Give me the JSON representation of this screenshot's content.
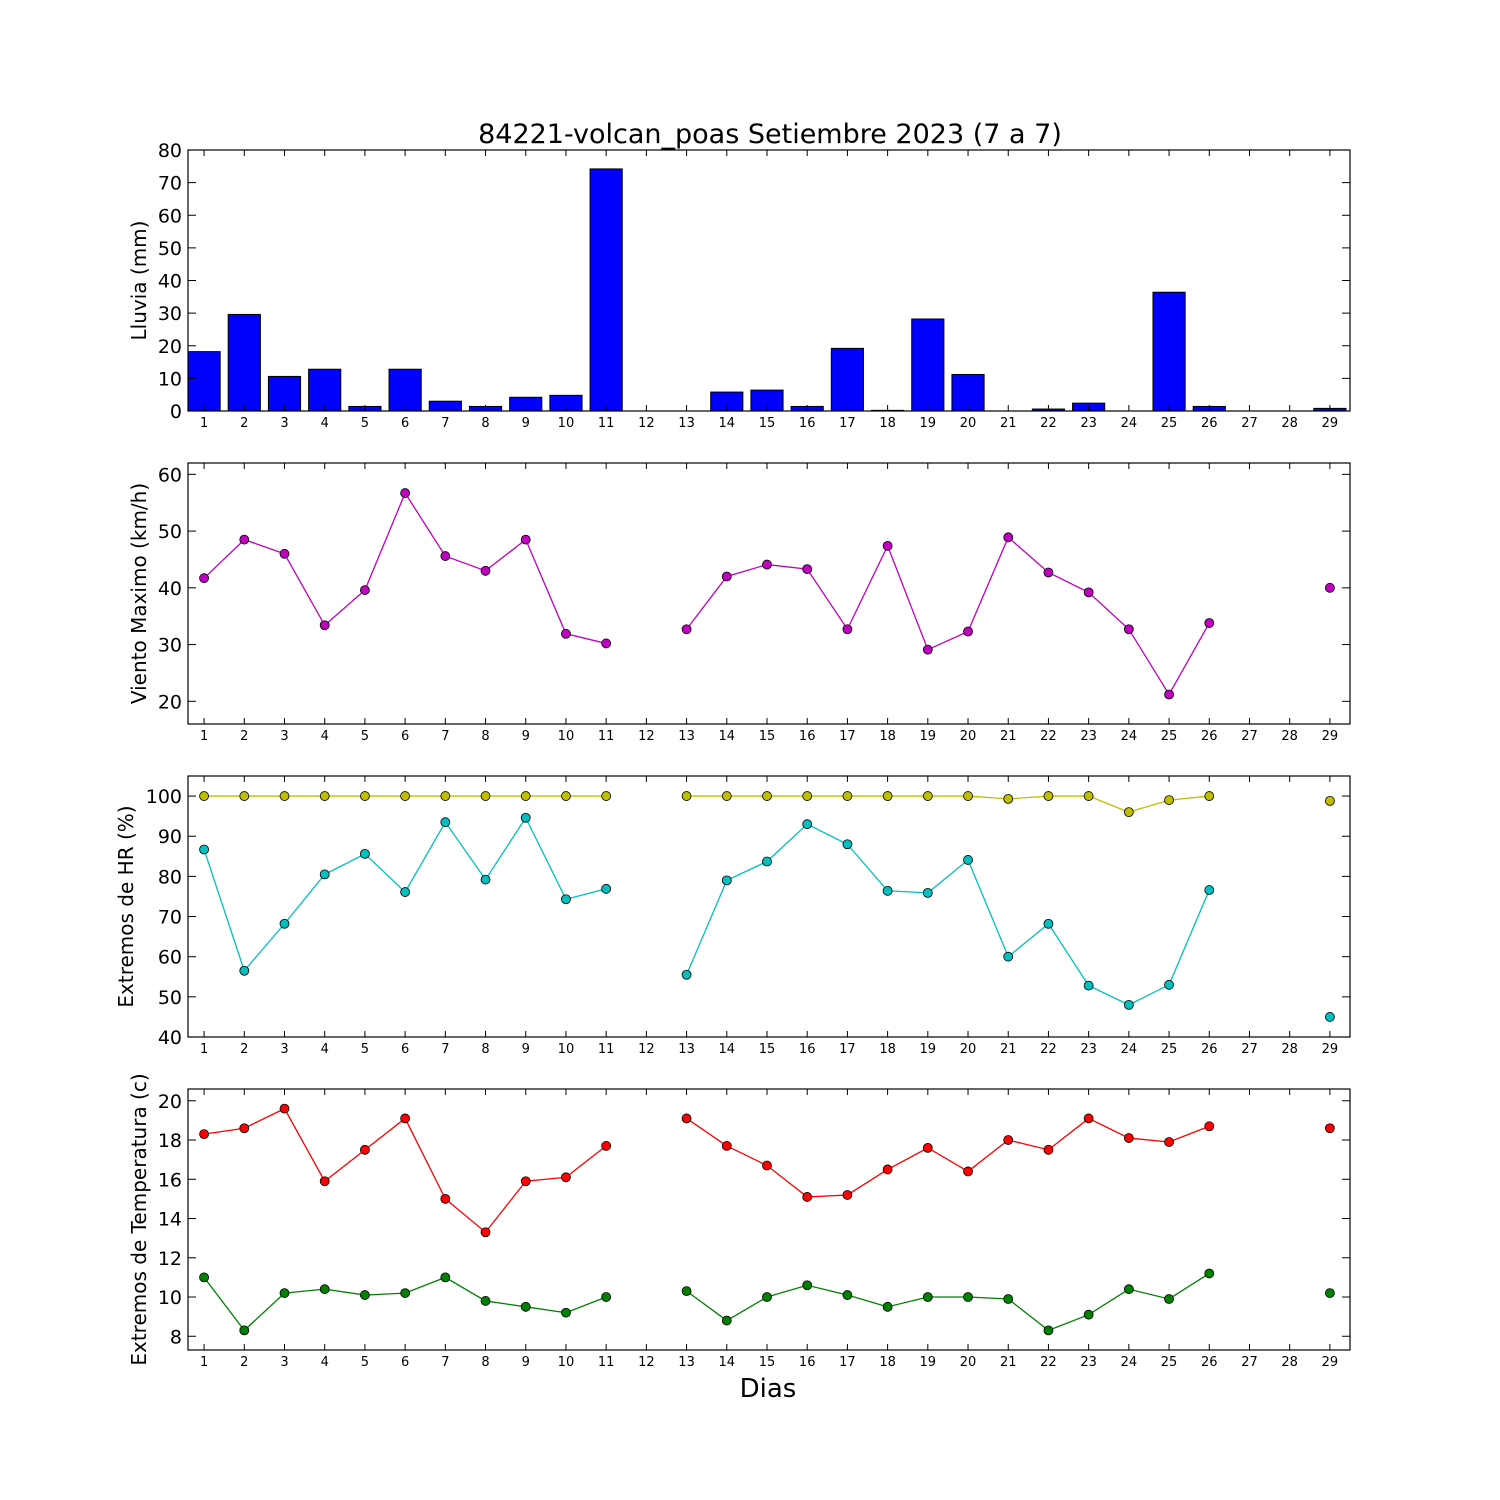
{
  "figure": {
    "title": "84221-volcan_poas Setiembre 2023  (7 a 7)",
    "xlabel": "Dias"
  },
  "chart_data": [
    {
      "type": "bar",
      "ylabel": "Lluvia (mm)",
      "ylim": [
        0,
        80
      ],
      "yticks": [
        0,
        10,
        20,
        30,
        40,
        50,
        60,
        70,
        80
      ],
      "x": [
        1,
        2,
        3,
        4,
        5,
        6,
        7,
        8,
        9,
        10,
        11,
        12,
        13,
        14,
        15,
        16,
        17,
        18,
        19,
        20,
        21,
        22,
        23,
        24,
        25,
        26,
        27,
        28,
        29
      ],
      "series": [
        {
          "color": "#0000ff",
          "values": [
            18.2,
            29.6,
            10.6,
            12.8,
            1.4,
            12.8,
            3.0,
            1.4,
            4.2,
            4.8,
            74.2,
            0,
            0,
            5.8,
            6.4,
            1.4,
            19.2,
            0.2,
            28.2,
            11.2,
            0,
            0.6,
            2.4,
            0,
            36.4,
            1.4,
            0,
            0,
            0.8
          ]
        }
      ]
    },
    {
      "type": "line",
      "ylabel": "Viento Maximo (km/h)",
      "ylim": [
        16,
        62
      ],
      "yticks": [
        20,
        30,
        40,
        50,
        60
      ],
      "x": [
        1,
        2,
        3,
        4,
        5,
        6,
        7,
        8,
        9,
        10,
        11,
        12,
        13,
        14,
        15,
        16,
        17,
        18,
        19,
        20,
        21,
        22,
        23,
        24,
        25,
        26,
        27,
        28,
        29
      ],
      "series": [
        {
          "color": "#bf00bf",
          "values": [
            41.7,
            48.5,
            46.0,
            33.4,
            39.6,
            56.7,
            45.6,
            43.0,
            48.5,
            31.9,
            30.2,
            null,
            32.7,
            42.0,
            44.1,
            43.3,
            32.7,
            47.4,
            29.1,
            32.3,
            48.9,
            42.7,
            39.2,
            32.7,
            21.2,
            33.8,
            null,
            null,
            40.0
          ]
        }
      ]
    },
    {
      "type": "line",
      "ylabel": "Extremos de HR (%)",
      "ylim": [
        40,
        105
      ],
      "yticks": [
        40,
        50,
        60,
        70,
        80,
        90,
        100
      ],
      "x": [
        1,
        2,
        3,
        4,
        5,
        6,
        7,
        8,
        9,
        10,
        11,
        12,
        13,
        14,
        15,
        16,
        17,
        18,
        19,
        20,
        21,
        22,
        23,
        24,
        25,
        26,
        27,
        28,
        29
      ],
      "series": [
        {
          "color": "#bfbf00",
          "values": [
            100,
            100,
            100,
            100,
            100,
            100,
            100,
            100,
            100,
            100,
            100,
            null,
            100,
            100,
            100,
            100,
            100,
            100,
            100,
            100,
            99.3,
            100,
            100,
            96.0,
            99.0,
            100,
            null,
            null,
            98.8
          ]
        },
        {
          "color": "#00bfbf",
          "values": [
            86.7,
            56.5,
            68.2,
            80.5,
            85.6,
            76.1,
            93.5,
            79.2,
            94.6,
            74.3,
            76.9,
            null,
            55.5,
            79.0,
            83.7,
            93.0,
            88.0,
            76.4,
            75.9,
            84.1,
            60.0,
            68.2,
            52.8,
            48.0,
            53.0,
            76.6,
            null,
            null,
            45.0
          ]
        }
      ]
    },
    {
      "type": "line",
      "ylabel": "Extremos de Temperatura (c)",
      "ylim": [
        7.3,
        20.6
      ],
      "yticks": [
        8,
        10,
        12,
        14,
        16,
        18,
        20
      ],
      "x": [
        1,
        2,
        3,
        4,
        5,
        6,
        7,
        8,
        9,
        10,
        11,
        12,
        13,
        14,
        15,
        16,
        17,
        18,
        19,
        20,
        21,
        22,
        23,
        24,
        25,
        26,
        27,
        28,
        29
      ],
      "series": [
        {
          "color": "#ff0000",
          "values": [
            18.3,
            18.6,
            19.6,
            15.9,
            17.5,
            19.1,
            15.0,
            13.3,
            15.9,
            16.1,
            17.7,
            null,
            19.1,
            17.7,
            16.7,
            15.1,
            15.2,
            16.5,
            17.6,
            16.4,
            18.0,
            17.5,
            19.1,
            18.1,
            17.9,
            18.7,
            null,
            null,
            18.6
          ]
        },
        {
          "color": "#008000",
          "values": [
            11.0,
            8.3,
            10.2,
            10.4,
            10.1,
            10.2,
            11.0,
            9.8,
            9.5,
            9.2,
            10.0,
            null,
            10.3,
            8.8,
            10.0,
            10.6,
            10.1,
            9.5,
            10.0,
            10.0,
            9.9,
            8.3,
            9.1,
            10.4,
            9.9,
            11.2,
            null,
            null,
            10.2
          ]
        }
      ]
    }
  ]
}
